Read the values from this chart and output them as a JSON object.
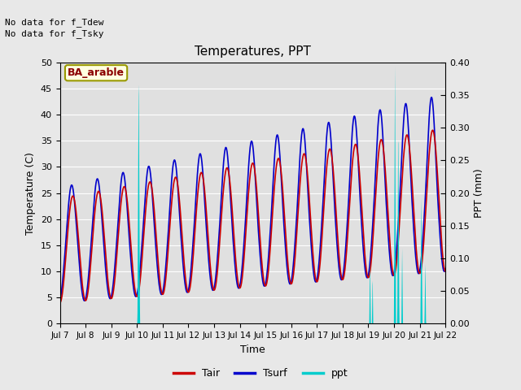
{
  "title": "Temperatures, PPT",
  "xlabel": "Time",
  "ylabel_left": "Temperature (C)",
  "ylabel_right": "PPT (mm)",
  "annotation_lines": [
    "No data for f_Tdew",
    "No data for f_Tsky"
  ],
  "box_label": "BA_arable",
  "ylim_left": [
    0,
    50
  ],
  "ylim_right": [
    0,
    0.4
  ],
  "yticks_left": [
    0,
    5,
    10,
    15,
    20,
    25,
    30,
    35,
    40,
    45,
    50
  ],
  "yticks_right": [
    0.0,
    0.05,
    0.1,
    0.15,
    0.2,
    0.25,
    0.3,
    0.35,
    0.4
  ],
  "xtick_labels": [
    "Jul 7",
    "Jul 8",
    "Jul 9",
    "Jul 10",
    "Jul 11",
    "Jul 12",
    "Jul 13",
    "Jul 14",
    "Jul 15",
    "Jul 16",
    "Jul 17",
    "Jul 18",
    "Jul 19",
    "Jul 20",
    "Jul 21",
    "Jul 22"
  ],
  "tair_color": "#cc0000",
  "tsurf_color": "#0000cc",
  "ppt_color": "#00cccc",
  "background_color": "#e8e8e8",
  "plot_bg_color": "#e0e0e0",
  "grid_color": "#ffffff",
  "legend_entries": [
    "Tair",
    "Tsurf",
    "ppt"
  ],
  "n_points": 1440,
  "days": 15
}
